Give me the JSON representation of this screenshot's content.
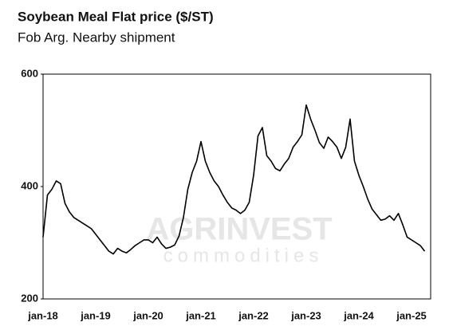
{
  "chart_data": {
    "type": "line",
    "title": "Soybean Meal Flat price ($/ST)",
    "subtitle": "Fob Arg. Nearby shipment",
    "watermark": [
      "AGRINVEST",
      "commodities"
    ],
    "categories": [
      "jan-18",
      null,
      null,
      null,
      null,
      null,
      null,
      null,
      null,
      null,
      null,
      null,
      "jan-19",
      null,
      null,
      null,
      null,
      null,
      null,
      null,
      null,
      null,
      null,
      null,
      "jan-20",
      null,
      null,
      null,
      null,
      null,
      null,
      null,
      null,
      null,
      null,
      null,
      "jan-21",
      null,
      null,
      null,
      null,
      null,
      null,
      null,
      null,
      null,
      null,
      null,
      "jan-22",
      null,
      null,
      null,
      null,
      null,
      null,
      null,
      null,
      null,
      null,
      null,
      "jan-23",
      null,
      null,
      null,
      null,
      null,
      null,
      null,
      null,
      null,
      null,
      null,
      "jan-24",
      null,
      null,
      null,
      null,
      null,
      null,
      null,
      null,
      null,
      null,
      null,
      "jan-25",
      null,
      null,
      null
    ],
    "series": [
      {
        "color": "#000000",
        "values": [
          310,
          385,
          395,
          410,
          405,
          370,
          355,
          345,
          340,
          335,
          330,
          325,
          315,
          305,
          295,
          285,
          280,
          290,
          285,
          282,
          288,
          295,
          300,
          305,
          305,
          300,
          310,
          298,
          290,
          292,
          296,
          312,
          345,
          395,
          425,
          445,
          480,
          445,
          425,
          410,
          400,
          385,
          372,
          362,
          358,
          352,
          358,
          372,
          420,
          490,
          505,
          455,
          445,
          432,
          428,
          440,
          450,
          470,
          480,
          492,
          545,
          520,
          500,
          478,
          468,
          488,
          480,
          470,
          450,
          470,
          520,
          445,
          420,
          400,
          378,
          360,
          350,
          340,
          342,
          348,
          340,
          352,
          332,
          310,
          305,
          300,
          295,
          285
        ]
      }
    ],
    "ylim": [
      200,
      600
    ],
    "yticks": [
      200,
      400,
      600
    ]
  }
}
